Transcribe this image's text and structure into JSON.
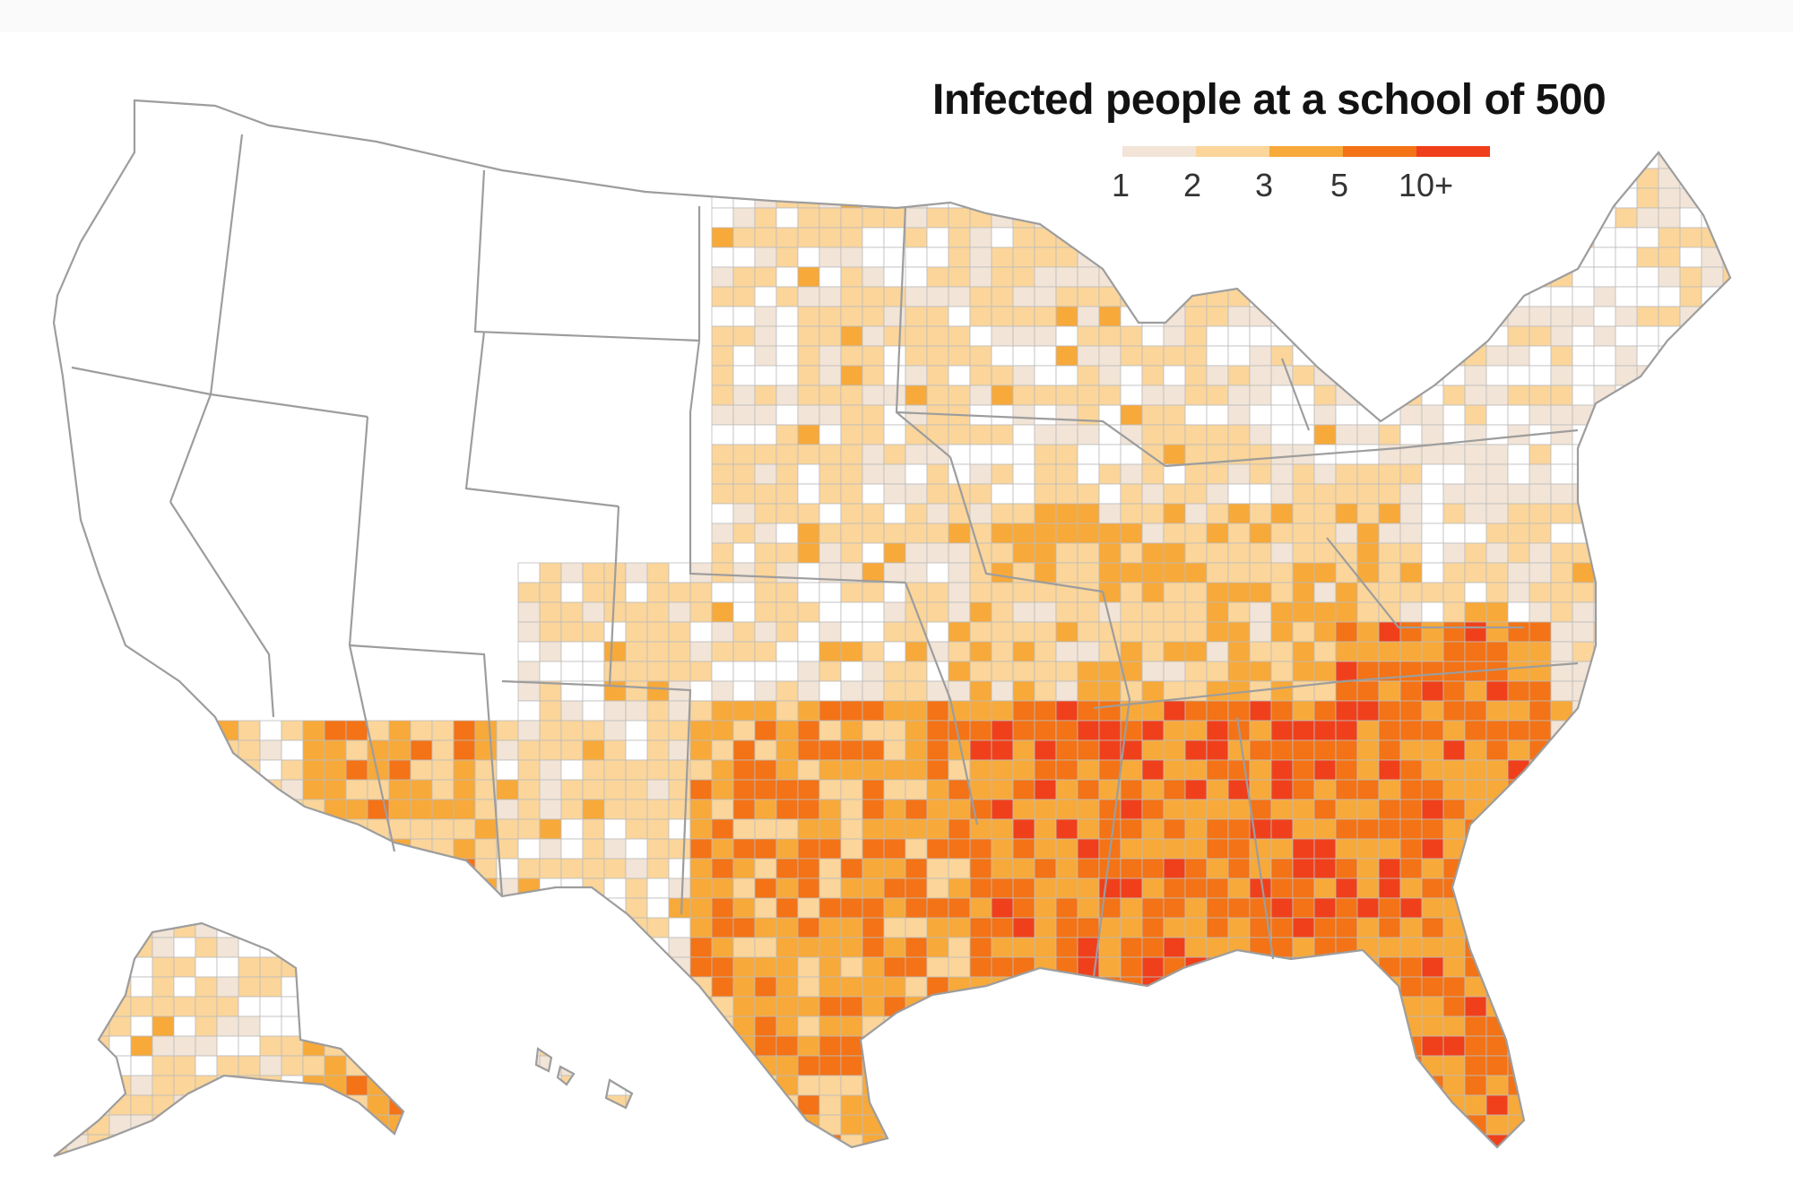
{
  "legend": {
    "title": "Infected people at a school of 500",
    "scale": [
      {
        "label": "1",
        "color": "#f2e4d6"
      },
      {
        "label": "2",
        "color": "#fbd59a"
      },
      {
        "label": "3",
        "color": "#f7a93a"
      },
      {
        "label": "5",
        "color": "#f37316"
      },
      {
        "label": "10+",
        "color": "#f0401b"
      }
    ]
  },
  "colors": {
    "none": "#ffffff",
    "border": "#bcbcbc",
    "state_border": "#9d9d9d"
  }
}
